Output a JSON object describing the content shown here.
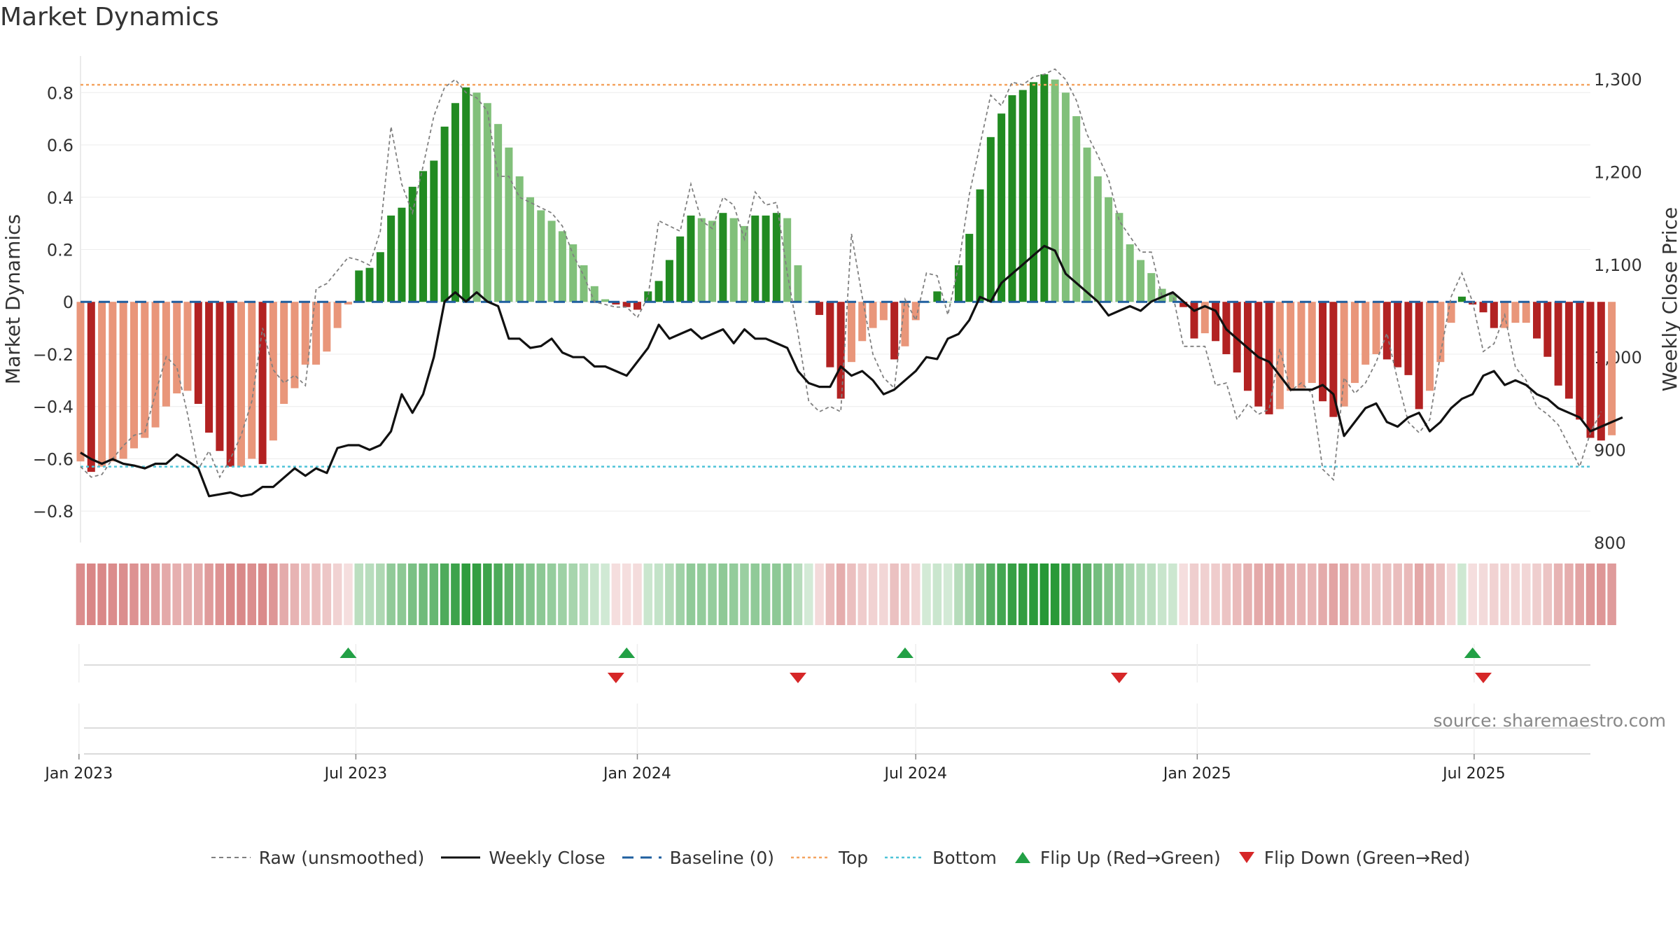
{
  "chart_data": {
    "type": "bar",
    "title": "Market Dynamics",
    "ylabel": "Market Dynamics",
    "y2label": "Weekly Close Price",
    "ylim": [
      -0.92,
      0.94
    ],
    "y2lim": [
      800,
      1325
    ],
    "yticks": [
      0.8,
      0.6,
      0.4,
      0.2,
      0,
      -0.2,
      -0.4,
      -0.6,
      -0.8
    ],
    "ytick_labels": [
      "0.8",
      "0.6",
      "0.4",
      "0.2",
      "0",
      "−0.2",
      "−0.4",
      "−0.6",
      "−0.8"
    ],
    "y2ticks": [
      1300,
      1200,
      1100,
      1000,
      900,
      800
    ],
    "y2tick_labels": [
      "1,300",
      "1,200",
      "1,100",
      "1,000",
      "900",
      "800"
    ],
    "x_start": "2023-01-02",
    "x_end": "2025-09-15",
    "xticks": [
      "2023-01-01",
      "2023-07-01",
      "2024-01-01",
      "2024-07-01",
      "2025-01-01",
      "2025-07-01"
    ],
    "xtick_labels": [
      "Jan 2023",
      "Jul 2023",
      "Jan 2024",
      "Jul 2024",
      "Jan 2025",
      "Jul 2025"
    ],
    "top_level": 0.83,
    "bottom_level": -0.63,
    "baseline": 0,
    "grid": true,
    "colors": {
      "up_strong": "#228b22",
      "up_weak": "#81c07a",
      "down_strong": "#b22222",
      "down_weak": "#e9967a",
      "top_line": "#f4a460",
      "bottom_line": "#4fc3d7",
      "baseline": "#1f5f9f",
      "raw_line": "#808080",
      "close_line": "#111111",
      "flip_up": "#22a045",
      "flip_down": "#d62728"
    },
    "series": [
      {
        "name": "Market Dynamics",
        "values": [
          -0.61,
          -0.65,
          -0.63,
          -0.61,
          -0.6,
          -0.56,
          -0.52,
          -0.48,
          -0.4,
          -0.35,
          -0.34,
          -0.39,
          -0.5,
          -0.57,
          -0.63,
          -0.63,
          -0.6,
          -0.62,
          -0.53,
          -0.39,
          -0.33,
          -0.24,
          -0.24,
          -0.19,
          -0.1,
          -0.01,
          0.12,
          0.13,
          0.19,
          0.33,
          0.36,
          0.44,
          0.5,
          0.54,
          0.67,
          0.76,
          0.82,
          0.8,
          0.76,
          0.68,
          0.59,
          0.48,
          0.4,
          0.35,
          0.31,
          0.27,
          0.22,
          0.14,
          0.06,
          0.01,
          -0.01,
          -0.02,
          -0.03,
          0.04,
          0.08,
          0.16,
          0.25,
          0.33,
          0.32,
          0.31,
          0.34,
          0.32,
          0.29,
          0.33,
          0.33,
          0.34,
          0.32,
          0.14,
          0.0,
          -0.05,
          -0.25,
          -0.37,
          -0.23,
          -0.15,
          -0.1,
          -0.07,
          -0.22,
          -0.17,
          -0.07,
          0.0,
          0.04,
          0.0,
          0.14,
          0.26,
          0.43,
          0.63,
          0.72,
          0.79,
          0.81,
          0.84,
          0.87,
          0.85,
          0.8,
          0.71,
          0.59,
          0.48,
          0.4,
          0.34,
          0.22,
          0.16,
          0.11,
          0.05,
          0.03,
          -0.02,
          -0.14,
          -0.12,
          -0.15,
          -0.2,
          -0.27,
          -0.34,
          -0.4,
          -0.43,
          -0.41,
          -0.34,
          -0.33,
          -0.31,
          -0.38,
          -0.44,
          -0.4,
          -0.31,
          -0.24,
          -0.2,
          -0.22,
          -0.25,
          -0.28,
          -0.41,
          -0.34,
          -0.23,
          -0.08,
          0.02,
          -0.01,
          -0.04,
          -0.1,
          -0.1,
          -0.08,
          -0.08,
          -0.14,
          -0.21,
          -0.32,
          -0.37,
          -0.45,
          -0.52,
          -0.53,
          -0.51
        ]
      },
      {
        "name": "Raw (unsmoothed)",
        "values": [
          -0.63,
          -0.67,
          -0.66,
          -0.6,
          -0.55,
          -0.51,
          -0.5,
          -0.35,
          -0.21,
          -0.25,
          -0.43,
          -0.64,
          -0.57,
          -0.67,
          -0.6,
          -0.51,
          -0.38,
          -0.1,
          -0.26,
          -0.31,
          -0.28,
          -0.32,
          0.05,
          0.07,
          0.12,
          0.17,
          0.16,
          0.14,
          0.27,
          0.67,
          0.45,
          0.34,
          0.52,
          0.71,
          0.82,
          0.85,
          0.8,
          0.78,
          0.73,
          0.48,
          0.48,
          0.4,
          0.38,
          0.36,
          0.34,
          0.29,
          0.18,
          0.1,
          0.0,
          -0.01,
          -0.02,
          -0.02,
          -0.06,
          0.02,
          0.31,
          0.29,
          0.27,
          0.45,
          0.31,
          0.28,
          0.4,
          0.37,
          0.24,
          0.42,
          0.37,
          0.38,
          0.11,
          -0.12,
          -0.38,
          -0.42,
          -0.4,
          -0.42,
          0.26,
          0.02,
          -0.2,
          -0.29,
          -0.33,
          0.01,
          -0.07,
          0.11,
          0.1,
          -0.05,
          0.14,
          0.41,
          0.6,
          0.79,
          0.75,
          0.84,
          0.83,
          0.86,
          0.87,
          0.89,
          0.85,
          0.77,
          0.64,
          0.56,
          0.47,
          0.31,
          0.25,
          0.19,
          0.19,
          0.02,
          0.03,
          -0.17,
          -0.17,
          -0.17,
          -0.32,
          -0.31,
          -0.45,
          -0.39,
          -0.43,
          -0.41,
          -0.18,
          -0.34,
          -0.31,
          -0.35,
          -0.64,
          -0.68,
          -0.29,
          -0.35,
          -0.31,
          -0.23,
          -0.12,
          -0.3,
          -0.46,
          -0.5,
          -0.45,
          -0.2,
          0.02,
          0.11,
          0.0,
          -0.19,
          -0.16,
          -0.05,
          -0.25,
          -0.3,
          -0.4,
          -0.43,
          -0.47,
          -0.55,
          -0.63,
          -0.5,
          -0.42
        ]
      },
      {
        "name": "Weekly Close",
        "axis": "right",
        "values": [
          897,
          890,
          885,
          890,
          885,
          883,
          880,
          885,
          885,
          895,
          888,
          880,
          850,
          852,
          854,
          850,
          852,
          860,
          860,
          870,
          880,
          872,
          880,
          875,
          902,
          905,
          905,
          900,
          905,
          920,
          960,
          940,
          960,
          1000,
          1060,
          1070,
          1060,
          1070,
          1060,
          1055,
          1020,
          1020,
          1010,
          1012,
          1020,
          1005,
          1000,
          1000,
          990,
          990,
          985,
          980,
          995,
          1010,
          1035,
          1020,
          1025,
          1030,
          1020,
          1025,
          1030,
          1015,
          1030,
          1020,
          1020,
          1015,
          1010,
          985,
          972,
          968,
          968,
          990,
          980,
          985,
          975,
          960,
          965,
          975,
          985,
          1000,
          998,
          1020,
          1025,
          1040,
          1065,
          1060,
          1080,
          1090,
          1100,
          1110,
          1120,
          1115,
          1090,
          1080,
          1070,
          1060,
          1045,
          1050,
          1055,
          1050,
          1060,
          1065,
          1070,
          1060,
          1050,
          1055,
          1050,
          1030,
          1020,
          1010,
          1000,
          995,
          980,
          965,
          965,
          965,
          970,
          960,
          915,
          930,
          945,
          950,
          930,
          925,
          935,
          940,
          920,
          930,
          945,
          955,
          960,
          980,
          985,
          970,
          975,
          970,
          960,
          955,
          945,
          940,
          935,
          920,
          925,
          930,
          935
        ]
      },
      {
        "name": "Baseline (0)"
      },
      {
        "name": "Top"
      },
      {
        "name": "Bottom"
      },
      {
        "name": "Flip Up (Red→Green)"
      },
      {
        "name": "Flip Down (Green→Red)"
      }
    ],
    "flips": [
      {
        "type": "up",
        "date": "2023-06-26"
      },
      {
        "type": "down",
        "date": "2023-12-18"
      },
      {
        "type": "up",
        "date": "2023-12-25"
      },
      {
        "type": "down",
        "date": "2024-04-15"
      },
      {
        "type": "up",
        "date": "2024-06-24"
      },
      {
        "type": "down",
        "date": "2024-11-11"
      },
      {
        "type": "up",
        "date": "2025-06-30"
      },
      {
        "type": "down",
        "date": "2025-07-07"
      }
    ]
  },
  "source": "source: sharemaestro.com"
}
